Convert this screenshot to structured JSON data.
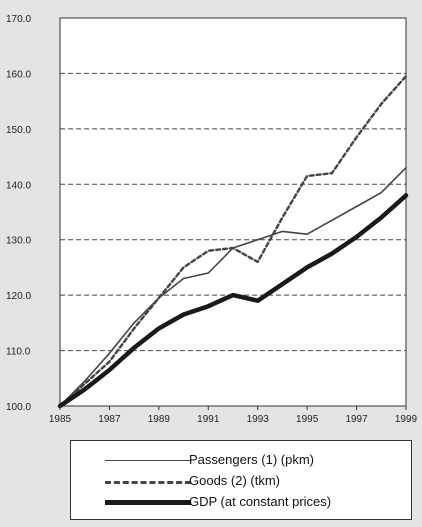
{
  "chart_data": {
    "type": "line",
    "title": "",
    "xlabel": "",
    "ylabel": "",
    "x": [
      1985,
      1986,
      1987,
      1988,
      1989,
      1990,
      1991,
      1992,
      1993,
      1994,
      1995,
      1996,
      1997,
      1998,
      1999
    ],
    "xlim": [
      1985,
      1999
    ],
    "ylim": [
      100.0,
      170.0
    ],
    "x_ticks": [
      1985,
      1987,
      1989,
      1991,
      1993,
      1995,
      1997,
      1999
    ],
    "x_tick_labels": [
      "1985",
      "1987",
      "1989",
      "1991",
      "1993",
      "1995",
      "1997",
      "1999"
    ],
    "y_ticks": [
      100,
      110,
      120,
      130,
      140,
      150,
      160,
      170
    ],
    "y_tick_labels": [
      "100.0",
      "110.0",
      "120.0",
      "130.0",
      "140.0",
      "150.0",
      "160.0",
      "170.0"
    ],
    "grid": "horizontal dashed",
    "legend_position": "bottom",
    "series": [
      {
        "name": "Passengers (1) (pkm)",
        "style": "solid",
        "color": "#444444",
        "values": [
          100.0,
          104.5,
          109.5,
          115.0,
          119.5,
          123.0,
          124.0,
          128.5,
          130.0,
          131.5,
          131.0,
          133.5,
          136.0,
          138.5,
          143.0
        ]
      },
      {
        "name": "Goods (2) (tkm)",
        "style": "dashed",
        "color": "#444444",
        "values": [
          100.0,
          104.0,
          108.0,
          114.0,
          119.5,
          125.0,
          128.0,
          128.5,
          126.0,
          134.0,
          141.5,
          142.0,
          148.5,
          154.5,
          159.5
        ]
      },
      {
        "name": "GDP (at constant prices)",
        "style": "thick",
        "color": "#1a1a1a",
        "values": [
          100.0,
          103.0,
          106.5,
          110.5,
          114.0,
          116.5,
          118.0,
          120.0,
          119.0,
          122.0,
          125.0,
          127.5,
          130.5,
          134.0,
          138.0
        ]
      }
    ]
  }
}
